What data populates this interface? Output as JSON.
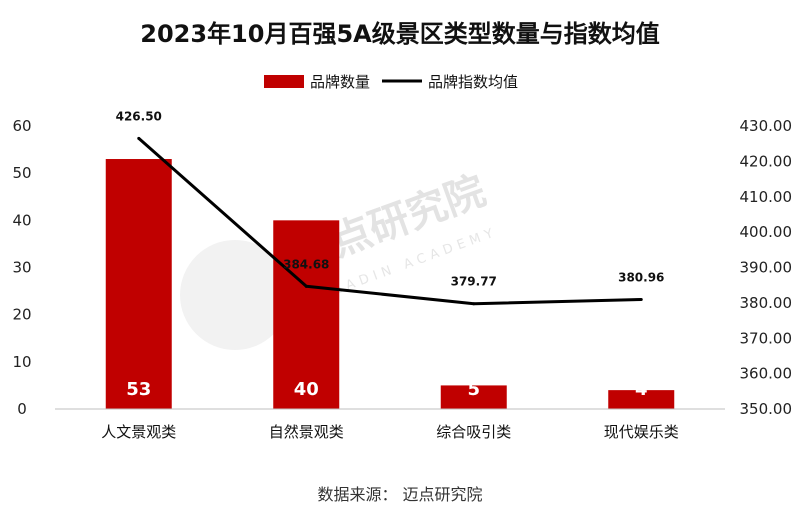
{
  "chart_data": {
    "type": "bar",
    "title": "2023年10月百强5A级景区类型数量与指数均值",
    "categories": [
      "人文景观类",
      "自然景观类",
      "综合吸引类",
      "现代娱乐类"
    ],
    "series": [
      {
        "name": "品牌数量",
        "type": "bar",
        "axis": "left",
        "values": [
          53,
          40,
          5,
          4
        ],
        "color": "#c00000"
      },
      {
        "name": "品牌指数均值",
        "type": "line",
        "axis": "right",
        "values": [
          426.5,
          384.68,
          379.77,
          380.96
        ],
        "color": "#000000"
      }
    ],
    "bar_labels": [
      "53",
      "40",
      "5",
      "4"
    ],
    "line_labels": [
      "426.50",
      "384.68",
      "379.77",
      "380.96"
    ],
    "y_left": {
      "min": 0,
      "max": 60,
      "ticks": [
        "0",
        "10",
        "20",
        "30",
        "40",
        "50",
        "60"
      ]
    },
    "y_right": {
      "min": 350,
      "max": 430,
      "ticks": [
        "350.00",
        "360.00",
        "370.00",
        "380.00",
        "390.00",
        "400.00",
        "410.00",
        "420.00",
        "430.00"
      ]
    },
    "legend": {
      "position": "top-center"
    },
    "grid": false,
    "source": "数据来源：  迈点研究院",
    "watermark": {
      "text": "迈点研究院",
      "subtext": "MEADIN ACADEMY"
    }
  }
}
